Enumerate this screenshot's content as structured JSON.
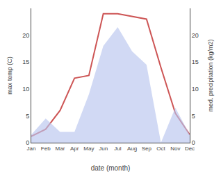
{
  "chart_data": {
    "type": "line",
    "xlabel": "date (month)",
    "ylabel": "max temp (C)",
    "y2label": "med. precipitation (kg/m2)",
    "categories": [
      "Jan",
      "Feb",
      "Mar",
      "Apr",
      "May",
      "Jun",
      "Jul",
      "Aug",
      "Sep",
      "Oct",
      "Nov",
      "Dec"
    ],
    "series": [
      {
        "type": "area",
        "axis": "y2",
        "color": "#b8c4ee",
        "values": [
          1.5,
          4.5,
          2.0,
          2.0,
          9.0,
          18.0,
          21.5,
          17.0,
          14.5,
          0.0,
          6.5,
          1.5
        ]
      },
      {
        "type": "line",
        "color": "#cd5555",
        "values": [
          1.2,
          2.5,
          6.0,
          12.0,
          12.5,
          24.0,
          24.0,
          23.5,
          23.0,
          14.0,
          5.5,
          1.5
        ]
      }
    ],
    "ylim": [
      0,
      25
    ],
    "yticks": [
      0,
      5,
      10,
      15,
      20
    ],
    "y2lim": [
      0,
      25
    ],
    "y2ticks": [
      0,
      5,
      10,
      15,
      20
    ],
    "grid": false
  }
}
